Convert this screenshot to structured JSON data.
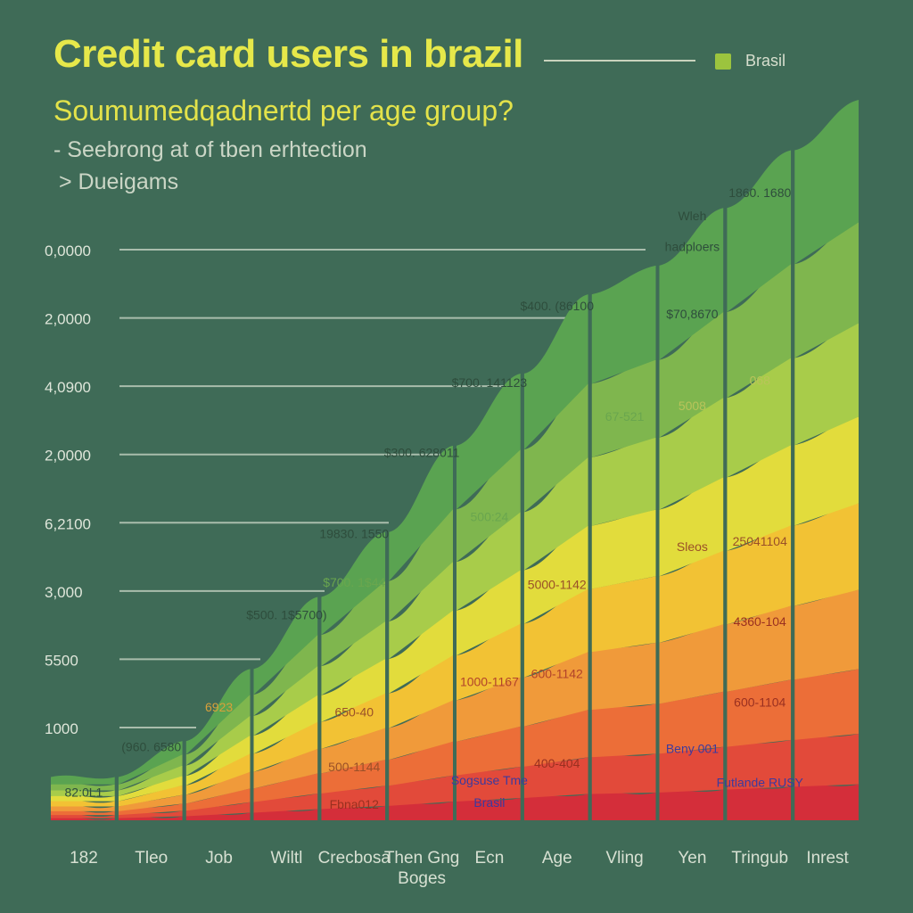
{
  "header": {
    "title": "Credit card users in brazil",
    "subtitle": "Soumumedqadnertd per age group?",
    "note_line1": "- Seebrong at of tben erhtection",
    "note_line2": "> Dueigams"
  },
  "legend": {
    "label": "Brasil",
    "color": "#9cc43e"
  },
  "colors": {
    "background": "#3f6b57",
    "bands": [
      "#d42e3a",
      "#e24a3a",
      "#ec6e38",
      "#f09a3a",
      "#f2c234",
      "#e2dc3c",
      "#a8cc4a",
      "#7fb64e",
      "#5aa351"
    ]
  },
  "chart_data": {
    "type": "area",
    "title": "Credit card users in brazil",
    "subtitle": "Soumumedqadnertd per age group?",
    "y_tick_labels": [
      "0,0000",
      "2,0000",
      "4,0900",
      "2,0000",
      "6,2100",
      "3,000",
      "5500",
      "1000"
    ],
    "categories": [
      "182",
      "Tleo",
      "Job",
      "Wiltl",
      "Crecbosa",
      "Then Gng Boges",
      "Ecn",
      "Age",
      "Vling",
      "Yen",
      "Tringub",
      "Inrest"
    ],
    "heights": [
      0.06,
      0.11,
      0.21,
      0.31,
      0.4,
      0.52,
      0.62,
      0.73,
      0.77,
      0.85,
      0.93,
      1.0
    ],
    "band_fractions": [
      0.05,
      0.07,
      0.09,
      0.11,
      0.12,
      0.12,
      0.13,
      0.14,
      0.17
    ],
    "annotations": [
      {
        "cat": 0,
        "frac": 0.55,
        "text": "82:0L1",
        "color": "#2e4d3c"
      },
      {
        "cat": 1,
        "frac": 0.87,
        "text": "(960. 6580",
        "color": "#2e4d3c"
      },
      {
        "cat": 2,
        "frac": 0.72,
        "text": "6923",
        "color": "#d9a03a"
      },
      {
        "cat": 3,
        "frac": 0.9,
        "text": "$500. 1$5700)",
        "color": "#2e4d3c"
      },
      {
        "cat": 4,
        "frac": 0.98,
        "text": "19830. 1550",
        "color": "#2e4d3c"
      },
      {
        "cat": 4,
        "frac": 0.81,
        "text": "$700. 1$44",
        "color": "#6aa64e"
      },
      {
        "cat": 4,
        "frac": 0.36,
        "text": "650-40",
        "color": "#9a5028"
      },
      {
        "cat": 4,
        "frac": 0.17,
        "text": "500-1144",
        "color": "#9a5028"
      },
      {
        "cat": 4,
        "frac": 0.04,
        "text": "Fbna012",
        "color": "#9a3020"
      },
      {
        "cat": 5,
        "frac": 0.97,
        "text": "$300. 628011",
        "color": "#2e4d3c"
      },
      {
        "cat": 6,
        "frac": 0.97,
        "text": "$700. 141123",
        "color": "#2e4d3c"
      },
      {
        "cat": 6,
        "frac": 0.67,
        "text": "500:24",
        "color": "#6aa64e"
      },
      {
        "cat": 6,
        "frac": 0.3,
        "text": "1000-1167",
        "color": "#b2432a"
      },
      {
        "cat": 6,
        "frac": 0.08,
        "text": "Sogsuse Tme",
        "color": "#3d3a9e"
      },
      {
        "cat": 6,
        "frac": 0.03,
        "text": "Brasil",
        "color": "#3d3a9e"
      },
      {
        "cat": 7,
        "frac": 0.97,
        "text": "$400. (86100",
        "color": "#2e4d3c"
      },
      {
        "cat": 7,
        "frac": 0.44,
        "text": "5000-1142",
        "color": "#9a5028"
      },
      {
        "cat": 7,
        "frac": 0.27,
        "text": "600-1142",
        "color": "#b2432a"
      },
      {
        "cat": 7,
        "frac": 0.1,
        "text": "400-404",
        "color": "#9a3020"
      },
      {
        "cat": 8,
        "frac": 0.72,
        "text": "67-521",
        "color": "#6aa64e"
      },
      {
        "cat": 9,
        "frac": 0.98,
        "text": "Wleh",
        "color": "#2e4d3c"
      },
      {
        "cat": 9,
        "frac": 0.93,
        "text": "hadploers",
        "color": "#2e4d3c"
      },
      {
        "cat": 9,
        "frac": 0.82,
        "text": "$70,8670",
        "color": "#2e4d3c"
      },
      {
        "cat": 9,
        "frac": 0.67,
        "text": "5008",
        "color": "#b9c45a"
      },
      {
        "cat": 9,
        "frac": 0.44,
        "text": "Sleos",
        "color": "#9a5028"
      },
      {
        "cat": 9,
        "frac": 0.11,
        "text": "Beny 001",
        "color": "#3d3a9e"
      },
      {
        "cat": 10,
        "frac": 0.93,
        "text": "1860. 1680",
        "color": "#2e4d3c"
      },
      {
        "cat": 10,
        "frac": 0.65,
        "text": "068",
        "color": "#b9c45a"
      },
      {
        "cat": 10,
        "frac": 0.41,
        "text": "25041104",
        "color": "#9a5028"
      },
      {
        "cat": 10,
        "frac": 0.29,
        "text": "4360-104",
        "color": "#9a3020"
      },
      {
        "cat": 10,
        "frac": 0.17,
        "text": "600-1104",
        "color": "#9a3020"
      },
      {
        "cat": 10,
        "frac": 0.05,
        "text": "Futlande RUSY",
        "color": "#3d3a9e"
      }
    ],
    "grid": false,
    "legend_position": "top-right"
  }
}
